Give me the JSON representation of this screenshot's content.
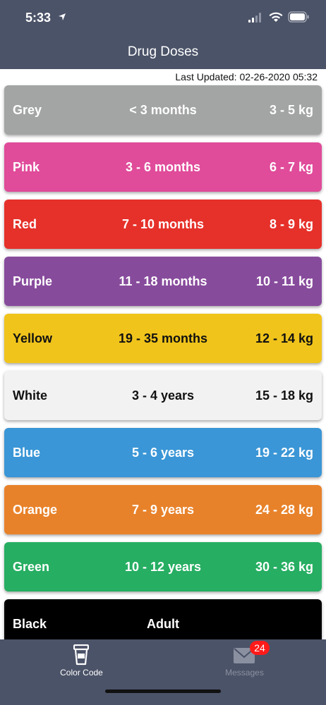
{
  "status_bar": {
    "time": "5:33"
  },
  "header": {
    "title": "Drug Doses"
  },
  "last_updated": "Last Updated: 02-26-2020 05:32",
  "rows": [
    {
      "name": "Grey",
      "age": "< 3 months",
      "weight": "3 - 5 kg",
      "bg": "#a3a5a4",
      "fg": "#ffffff"
    },
    {
      "name": "Pink",
      "age": "3 - 6 months",
      "weight": "6 - 7 kg",
      "bg": "#e04b9a",
      "fg": "#ffffff"
    },
    {
      "name": "Red",
      "age": "7 - 10 months",
      "weight": "8 - 9 kg",
      "bg": "#e6302a",
      "fg": "#ffffff"
    },
    {
      "name": "Purple",
      "age": "11 - 18 months",
      "weight": "10 - 11 kg",
      "bg": "#874b9c",
      "fg": "#ffffff"
    },
    {
      "name": "Yellow",
      "age": "19 - 35 months",
      "weight": "12 - 14 kg",
      "bg": "#f0c41b",
      "fg": "#111111"
    },
    {
      "name": "White",
      "age": "3 - 4 years",
      "weight": "15 - 18 kg",
      "bg": "#f2f2f2",
      "fg": "#111111"
    },
    {
      "name": "Blue",
      "age": "5 - 6 years",
      "weight": "19 - 22 kg",
      "bg": "#3a96d6",
      "fg": "#ffffff"
    },
    {
      "name": "Orange",
      "age": "7 - 9 years",
      "weight": "24 - 28 kg",
      "bg": "#e8822a",
      "fg": "#ffffff"
    },
    {
      "name": "Green",
      "age": "10 - 12 years",
      "weight": "30 - 36 kg",
      "bg": "#26ae62",
      "fg": "#ffffff"
    },
    {
      "name": "Black",
      "age": "Adult",
      "weight": "",
      "bg": "#000000",
      "fg": "#ffffff"
    }
  ],
  "tabs": [
    {
      "label": "Color Code",
      "icon": "cup-icon",
      "color": "#ffffff"
    },
    {
      "label": "Messages",
      "icon": "mail-icon",
      "color": "#8a90a0",
      "badge": "24"
    }
  ]
}
